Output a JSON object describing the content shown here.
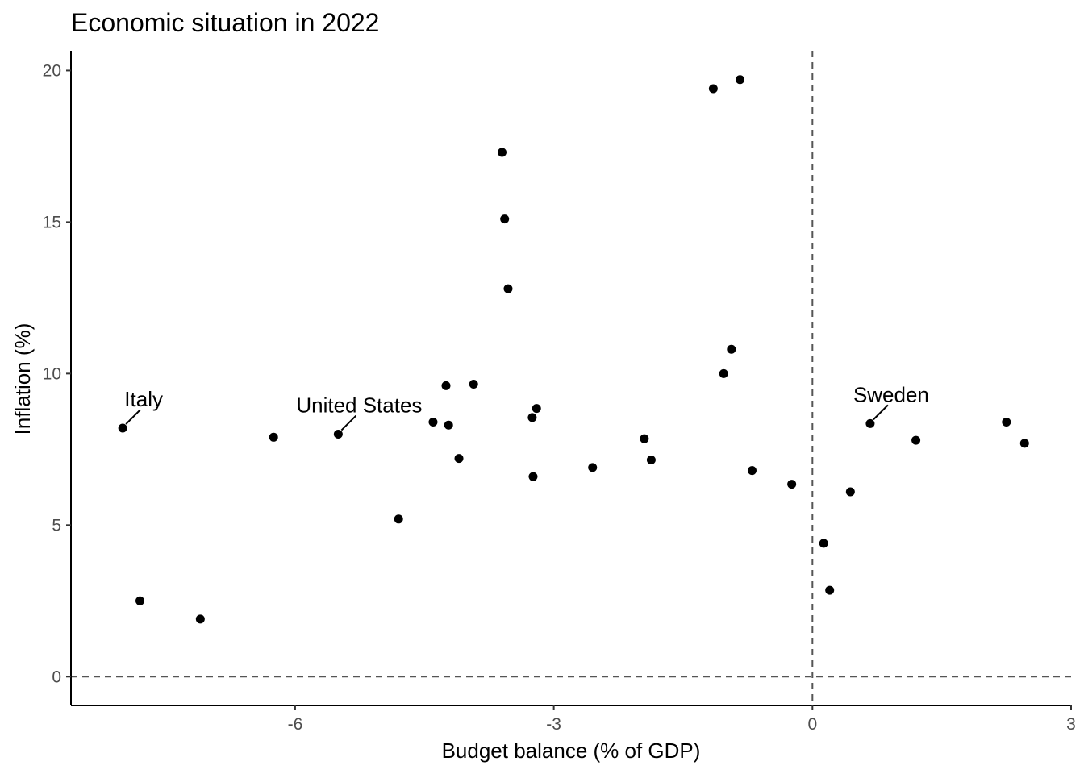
{
  "chart_data": {
    "type": "scatter",
    "title": "Economic situation in 2022",
    "xlabel": "Budget balance (% of GDP)",
    "ylabel": "Inflation (%)",
    "xlim": [
      -8.6,
      3.0
    ],
    "ylim": [
      -0.95,
      20.65
    ],
    "xticks": [
      -6,
      -3,
      0,
      3
    ],
    "xtick_labels": [
      "-6",
      "-3",
      "0",
      "3"
    ],
    "yticks": [
      0,
      5,
      10,
      15,
      20
    ],
    "ytick_labels": [
      "0",
      "5",
      "10",
      "15",
      "20"
    ],
    "reference_lines": [
      {
        "axis": "x",
        "value": 0,
        "style": "dashed"
      },
      {
        "axis": "y",
        "value": 0,
        "style": "dashed"
      }
    ],
    "grid": false,
    "points": [
      {
        "x": -8.0,
        "y": 8.2
      },
      {
        "x": -7.8,
        "y": 2.5
      },
      {
        "x": -7.1,
        "y": 1.9
      },
      {
        "x": -6.25,
        "y": 7.9
      },
      {
        "x": -5.5,
        "y": 8.0
      },
      {
        "x": -4.8,
        "y": 5.2
      },
      {
        "x": -4.4,
        "y": 8.4
      },
      {
        "x": -4.25,
        "y": 9.6
      },
      {
        "x": -4.22,
        "y": 8.3
      },
      {
        "x": -4.1,
        "y": 7.2
      },
      {
        "x": -3.93,
        "y": 9.65
      },
      {
        "x": -3.6,
        "y": 17.3
      },
      {
        "x": -3.57,
        "y": 15.1
      },
      {
        "x": -3.53,
        "y": 12.8
      },
      {
        "x": -3.25,
        "y": 8.55
      },
      {
        "x": -3.24,
        "y": 6.6
      },
      {
        "x": -3.2,
        "y": 8.85
      },
      {
        "x": -2.55,
        "y": 6.9
      },
      {
        "x": -1.95,
        "y": 7.85
      },
      {
        "x": -1.87,
        "y": 7.15
      },
      {
        "x": -1.15,
        "y": 19.4
      },
      {
        "x": -0.84,
        "y": 19.7
      },
      {
        "x": -1.03,
        "y": 10.0
      },
      {
        "x": -0.94,
        "y": 10.8
      },
      {
        "x": -0.7,
        "y": 6.8
      },
      {
        "x": -0.24,
        "y": 6.35
      },
      {
        "x": 0.13,
        "y": 4.4
      },
      {
        "x": 0.2,
        "y": 2.85
      },
      {
        "x": 0.44,
        "y": 6.1
      },
      {
        "x": 0.67,
        "y": 8.35
      },
      {
        "x": 1.2,
        "y": 7.8
      },
      {
        "x": 2.25,
        "y": 8.4
      },
      {
        "x": 2.46,
        "y": 7.7
      }
    ],
    "annotations": [
      {
        "label": "Italy",
        "x": -8.0,
        "y": 8.2
      },
      {
        "label": "United States",
        "x": -5.5,
        "y": 8.0
      },
      {
        "label": "Sweden",
        "x": 0.67,
        "y": 8.35
      }
    ]
  }
}
